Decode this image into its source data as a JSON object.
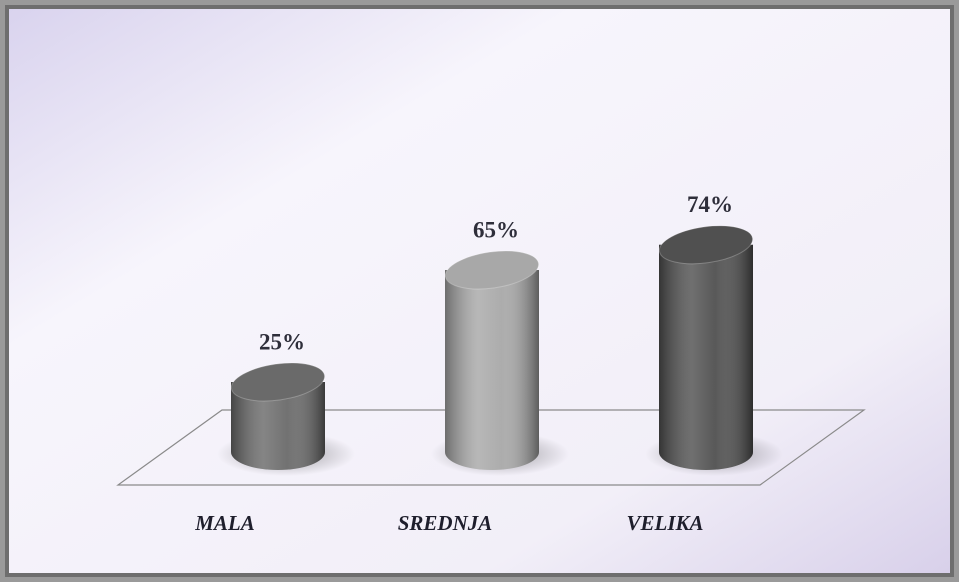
{
  "chart_data": {
    "type": "bar",
    "categories": [
      "MALA",
      "SREDNJA",
      "VELIKA"
    ],
    "values": [
      25,
      65,
      74
    ],
    "value_labels": [
      "25%",
      "65%",
      "74%"
    ],
    "colors": [
      "#6a6a6a",
      "#a8a8a8",
      "#505050"
    ]
  }
}
